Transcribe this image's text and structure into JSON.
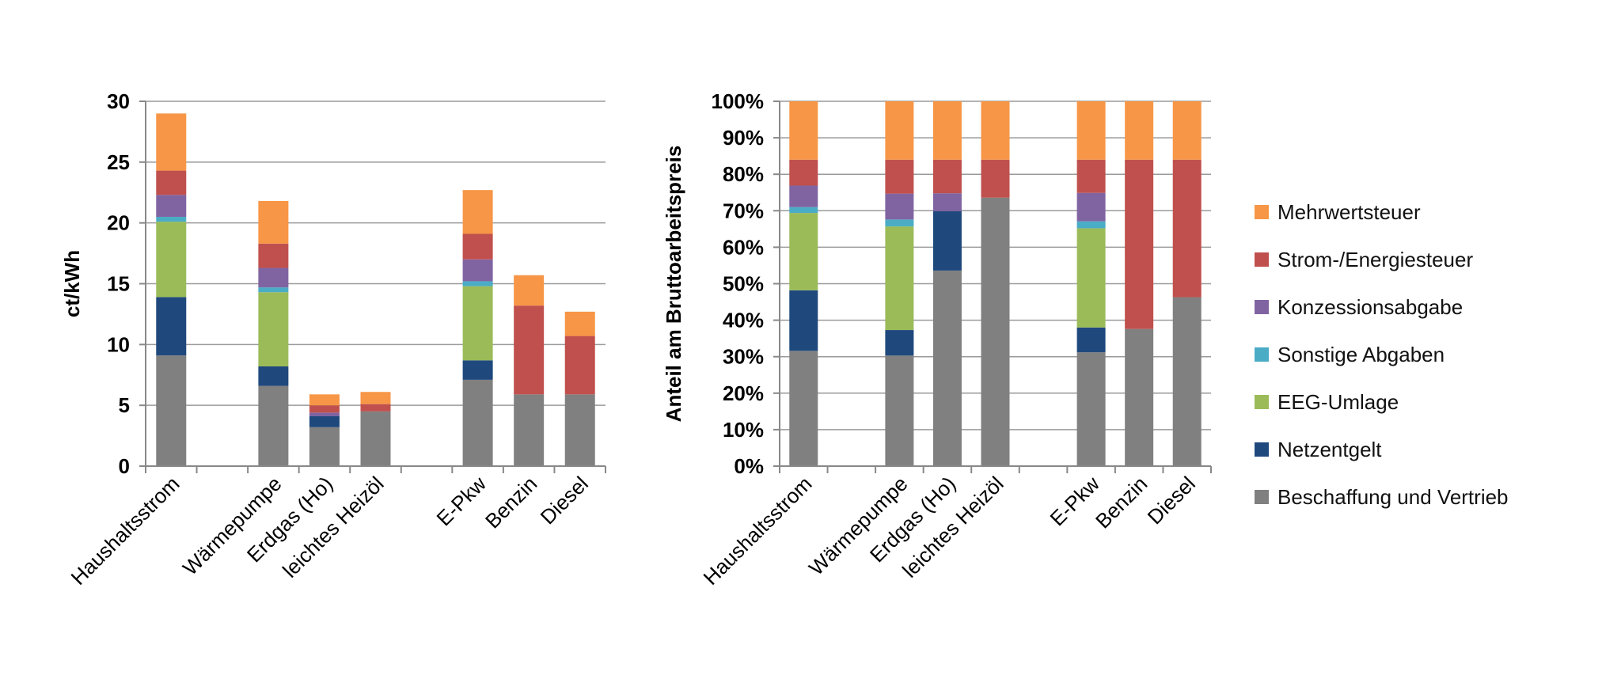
{
  "chart_data": [
    {
      "type": "bar",
      "stacked": true,
      "ylabel": "ct/kWh",
      "ylim": [
        0,
        30
      ],
      "yticks": [
        "0",
        "5",
        "10",
        "15",
        "20",
        "25",
        "30"
      ],
      "grid": true,
      "categories": [
        "Haushaltsstrom",
        "",
        "Wärmepumpe",
        "Erdgas (Ho)",
        "leichtes Heizöl",
        "",
        "E-Pkw",
        "Benzin",
        "Diesel"
      ],
      "series": [
        {
          "name": "Beschaffung und Vertrieb",
          "color": "#808080",
          "values": [
            9.1,
            0,
            6.6,
            3.2,
            4.5,
            0,
            7.1,
            5.9,
            5.9
          ]
        },
        {
          "name": "Netzentgelt",
          "color": "#1f497d",
          "values": [
            4.8,
            0,
            1.6,
            0.9,
            0,
            0,
            1.6,
            0,
            0
          ]
        },
        {
          "name": "EEG-Umlage",
          "color": "#9bbb59",
          "values": [
            6.2,
            0,
            6.1,
            0,
            0,
            0,
            6.1,
            0,
            0
          ]
        },
        {
          "name": "Sonstige Abgaben",
          "color": "#4bacc6",
          "values": [
            0.4,
            0,
            0.4,
            0,
            0,
            0,
            0.4,
            0,
            0
          ]
        },
        {
          "name": "Konzessionsabgabe",
          "color": "#8064a2",
          "values": [
            1.8,
            0,
            1.6,
            0.3,
            0,
            0,
            1.8,
            0,
            0
          ]
        },
        {
          "name": "Strom-/Energiesteuer",
          "color": "#c0504d",
          "values": [
            2.0,
            0,
            2.0,
            0.6,
            0.6,
            0,
            2.1,
            7.3,
            4.8
          ]
        },
        {
          "name": "Mehrwertsteuer",
          "color": "#f79646",
          "values": [
            4.7,
            0,
            3.5,
            0.9,
            1.0,
            0,
            3.6,
            2.5,
            2.0
          ]
        }
      ]
    },
    {
      "type": "bar",
      "stacked": true,
      "ylabel": "Anteil am Bruttoarbeitspreis",
      "ylim": [
        0,
        100
      ],
      "yticks": [
        "0%",
        "10%",
        "20%",
        "30%",
        "40%",
        "50%",
        "60%",
        "70%",
        "80%",
        "90%",
        "100%"
      ],
      "grid": true,
      "categories": [
        "Haushaltsstrom",
        "",
        "Wärmepumpe",
        "Erdgas (Ho)",
        "leichtes Heizöl",
        "",
        "E-Pkw",
        "Benzin",
        "Diesel"
      ],
      "series": [
        {
          "name": "Beschaffung und Vertrieb",
          "color": "#808080",
          "values": [
            31.6,
            0,
            30.3,
            53.6,
            73.6,
            0,
            31.2,
            37.6,
            46.3
          ]
        },
        {
          "name": "Netzentgelt",
          "color": "#1f497d",
          "values": [
            16.6,
            0,
            7.0,
            16.3,
            0,
            0,
            6.8,
            0,
            0
          ]
        },
        {
          "name": "EEG-Umlage",
          "color": "#9bbb59",
          "values": [
            21.2,
            0,
            28.4,
            0,
            0,
            0,
            27.2,
            0,
            0
          ]
        },
        {
          "name": "Sonstige Abgaben",
          "color": "#4bacc6",
          "values": [
            1.6,
            0,
            1.9,
            0,
            0,
            0,
            1.9,
            0,
            0
          ]
        },
        {
          "name": "Konzessionsabgabe",
          "color": "#8064a2",
          "values": [
            5.9,
            0,
            7.1,
            4.9,
            0,
            0,
            7.8,
            0,
            0
          ]
        },
        {
          "name": "Strom-/Energiesteuer",
          "color": "#c0504d",
          "values": [
            7.1,
            0,
            9.3,
            9.2,
            10.4,
            0,
            9.1,
            46.4,
            37.7
          ]
        },
        {
          "name": "Mehrwertsteuer",
          "color": "#f79646",
          "values": [
            16.0,
            0,
            16.0,
            16.0,
            16.0,
            0,
            16.0,
            16.0,
            16.0
          ]
        }
      ]
    }
  ],
  "legend": {
    "placement": "right",
    "items": [
      {
        "label": "Mehrwertsteuer",
        "color": "#f79646"
      },
      {
        "label": "Strom-/Energiesteuer",
        "color": "#c0504d"
      },
      {
        "label": "Konzessionsabgabe",
        "color": "#8064a2"
      },
      {
        "label": "Sonstige Abgaben",
        "color": "#4bacc6"
      },
      {
        "label": "EEG-Umlage",
        "color": "#9bbb59"
      },
      {
        "label": "Netzentgelt",
        "color": "#1f497d"
      },
      {
        "label": "Beschaffung und Vertrieb",
        "color": "#808080"
      }
    ]
  }
}
